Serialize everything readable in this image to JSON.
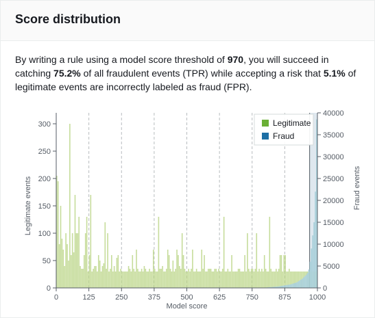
{
  "panel": {
    "title": "Score distribution"
  },
  "summary": {
    "part1": "By writing a rule using a model score threshold of ",
    "threshold": "970",
    "part2": ", you will succeed in catching ",
    "tpr": "75.2%",
    "part3": " of all fraudulent events (TPR) while accepting a risk that ",
    "fpr": "5.1%",
    "part4": " of legitimate events are incorrectly labeled as fraud (FPR)."
  },
  "colors": {
    "legitimate": "#c6dc9b",
    "legitimate_legend": "#6aaf35",
    "fraud": "#a9d0da",
    "fraud_legend": "#1d6fa5",
    "threshold_band": "#dfe8ef",
    "threshold_line": "#687078"
  },
  "chart_data": {
    "type": "bar",
    "xlabel": "Model score",
    "ylabel_left": "Legitimate events",
    "ylabel_right": "Fraud events",
    "xlim": [
      0,
      1000
    ],
    "ylim_left": [
      0,
      320
    ],
    "ylim_right": [
      0,
      40000
    ],
    "x_ticks": [
      "0",
      "125",
      "250",
      "375",
      "500",
      "625",
      "750",
      "875",
      "1000"
    ],
    "y_ticks_left": [
      "0",
      "50",
      "100",
      "150",
      "200",
      "250",
      "300"
    ],
    "y_ticks_right": [
      "0",
      "5000",
      "10000",
      "15000",
      "20000",
      "25000",
      "30000",
      "35000",
      "40000"
    ],
    "legend": [
      "Legitimate",
      "Fraud"
    ],
    "legend_position": "top-right",
    "threshold": 970,
    "series": [
      {
        "name": "Legitimate",
        "axis": "left",
        "bin_width": 5,
        "values": [
          205,
          195,
          80,
          150,
          90,
          70,
          40,
          100,
          80,
          50,
          300,
          60,
          100,
          65,
          170,
          100,
          100,
          130,
          40,
          35,
          35,
          60,
          100,
          130,
          30,
          60,
          170,
          30,
          35,
          40,
          40,
          30,
          60,
          50,
          30,
          40,
          45,
          120,
          35,
          100,
          30,
          35,
          60,
          30,
          40,
          30,
          55,
          60,
          30,
          35,
          30,
          30,
          30,
          30,
          30,
          40,
          35,
          30,
          60,
          35,
          30,
          70,
          35,
          30,
          30,
          35,
          30,
          40,
          35,
          30,
          30,
          35,
          30,
          30,
          70,
          35,
          30,
          30,
          130,
          35,
          35,
          40,
          30,
          30,
          35,
          70,
          60,
          35,
          30,
          50,
          30,
          35,
          70,
          60,
          40,
          35,
          100,
          60,
          35,
          30,
          30,
          35,
          30,
          35,
          70,
          30,
          30,
          35,
          30,
          30,
          30,
          70,
          35,
          60,
          30,
          30,
          35,
          35,
          35,
          30,
          30,
          35,
          35,
          30,
          35,
          30,
          30,
          35,
          130,
          30,
          30,
          35,
          30,
          30,
          60,
          30,
          30,
          30,
          30,
          35,
          35,
          30,
          30,
          30,
          60,
          30,
          100,
          35,
          30,
          35,
          35,
          30,
          35,
          100,
          30,
          35,
          30,
          35,
          30,
          60,
          35,
          30,
          30,
          130,
          35,
          30,
          30,
          30,
          35,
          30,
          35,
          60,
          60,
          30,
          60,
          60,
          30,
          30,
          35,
          30,
          30,
          30,
          30,
          30,
          30,
          30,
          30,
          30,
          30,
          30,
          30,
          30,
          30,
          30,
          30,
          30,
          30,
          30,
          30,
          30
        ]
      },
      {
        "name": "Fraud",
        "axis": "right",
        "bin_width": 5,
        "start_bin": 160,
        "values": [
          100,
          100,
          150,
          150,
          200,
          200,
          250,
          250,
          300,
          300,
          350,
          400,
          450,
          500,
          550,
          600,
          650,
          700,
          750,
          800,
          900,
          1000,
          1100,
          1200,
          1300,
          1500,
          1700,
          1900,
          2100,
          2400,
          2700,
          3000,
          3400,
          4200,
          6000,
          9000,
          12000,
          15000,
          22000,
          38500
        ]
      }
    ]
  }
}
